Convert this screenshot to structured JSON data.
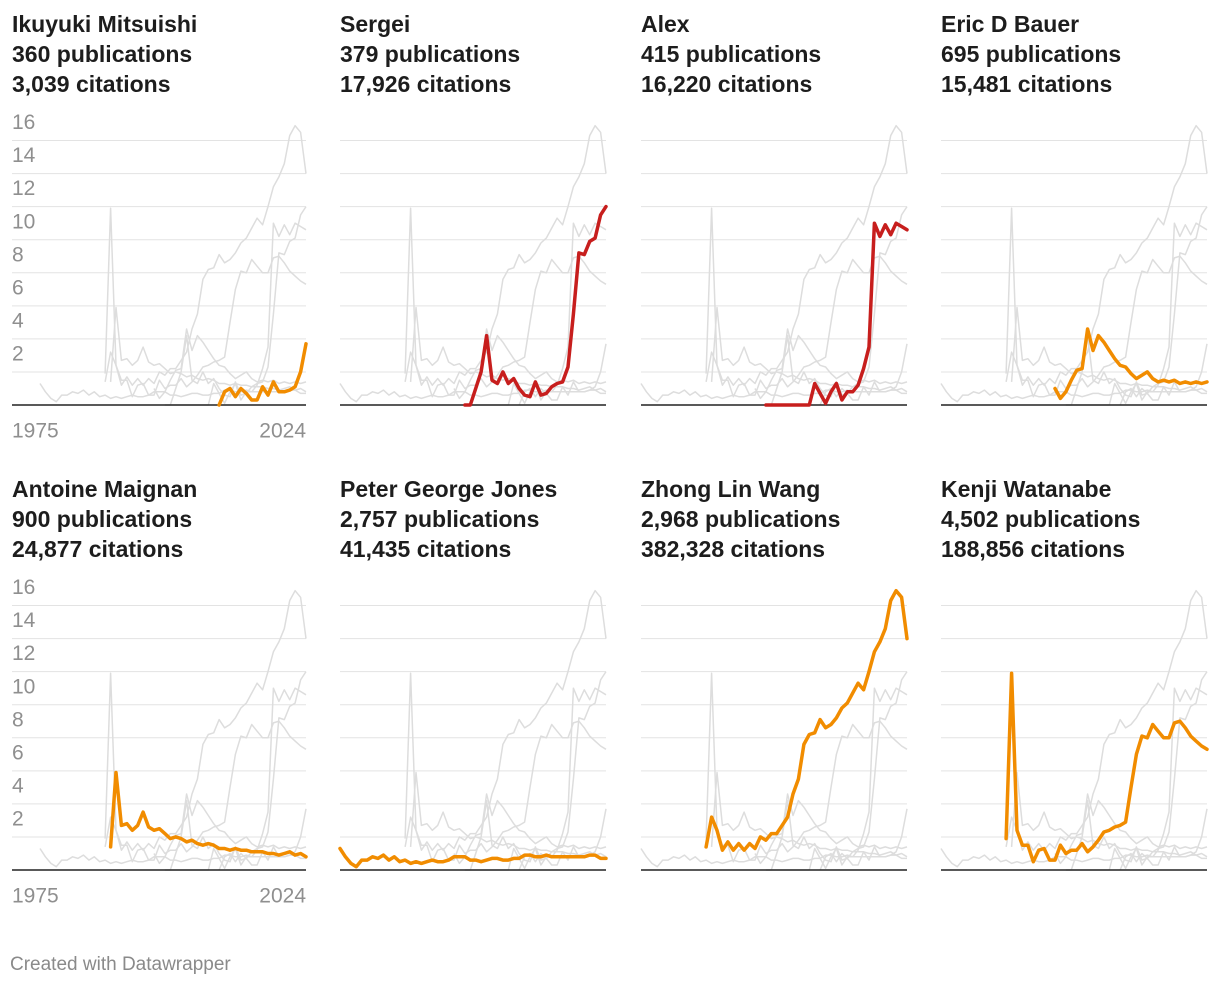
{
  "chart_data": {
    "type": "line",
    "x": [
      1975,
      1976,
      1977,
      1978,
      1979,
      1980,
      1981,
      1982,
      1983,
      1984,
      1985,
      1986,
      1987,
      1988,
      1989,
      1990,
      1991,
      1992,
      1993,
      1994,
      1995,
      1996,
      1997,
      1998,
      1999,
      2000,
      2001,
      2002,
      2003,
      2004,
      2005,
      2006,
      2007,
      2008,
      2009,
      2010,
      2011,
      2012,
      2013,
      2014,
      2015,
      2016,
      2017,
      2018,
      2019,
      2020,
      2021,
      2022,
      2023,
      2024
    ],
    "xlim": [
      1975,
      2024
    ],
    "xticks": [
      1975,
      2024
    ],
    "ylim": [
      0,
      17
    ],
    "yticks": [
      2,
      4,
      6,
      8,
      10,
      12,
      14,
      16
    ],
    "grid": true,
    "background_color": "#dddddd",
    "series": [
      {
        "name": "Ikuyuki Mitsuishi",
        "publications": "360 publications",
        "citations": "3,039 citations",
        "color": "#f18c00",
        "values": [
          null,
          null,
          null,
          null,
          null,
          null,
          null,
          null,
          null,
          null,
          null,
          null,
          null,
          null,
          null,
          null,
          null,
          null,
          null,
          null,
          null,
          null,
          null,
          null,
          null,
          null,
          null,
          null,
          null,
          null,
          null,
          null,
          null,
          0,
          0.8,
          1.0,
          0.5,
          1.0,
          0.7,
          0.3,
          0.3,
          1.1,
          0.6,
          1.4,
          0.8,
          0.8,
          0.9,
          1.1,
          2.0,
          3.7
        ]
      },
      {
        "name": "Sergei",
        "publications": "379 publications",
        "citations": "17,926 citations",
        "color": "#c71e1d",
        "values": [
          null,
          null,
          null,
          null,
          null,
          null,
          null,
          null,
          null,
          null,
          null,
          null,
          null,
          null,
          null,
          null,
          null,
          null,
          null,
          null,
          null,
          null,
          null,
          0,
          0,
          1.0,
          2.0,
          4.2,
          1.5,
          1.3,
          2.0,
          1.3,
          1.6,
          1.0,
          0.6,
          0.5,
          1.4,
          0.6,
          0.7,
          1.1,
          1.3,
          1.4,
          2.3,
          5.5,
          9.2,
          9.1,
          9.9,
          10.1,
          11.5,
          12.0
        ]
      },
      {
        "name": "Alex",
        "publications": "415 publications",
        "citations": "16,220 citations",
        "color": "#c71e1d",
        "values": [
          null,
          null,
          null,
          null,
          null,
          null,
          null,
          null,
          null,
          null,
          null,
          null,
          null,
          null,
          null,
          null,
          null,
          null,
          null,
          null,
          null,
          null,
          null,
          0,
          0,
          0,
          0,
          0,
          0,
          0,
          0,
          0,
          1.3,
          0.7,
          0.1,
          0.8,
          1.3,
          0.3,
          0.8,
          0.8,
          1.2,
          2.2,
          3.5,
          11,
          10.2,
          10.9,
          10.3,
          11,
          10.8,
          10.6
        ]
      },
      {
        "name": "Eric D Bauer",
        "publications": "695 publications",
        "citations": "15,481 citations",
        "color": "#f18c00",
        "values": [
          null,
          null,
          null,
          null,
          null,
          null,
          null,
          null,
          null,
          null,
          null,
          null,
          null,
          null,
          null,
          null,
          null,
          null,
          null,
          null,
          null,
          1.0,
          0.4,
          0.8,
          1.5,
          2.1,
          2.2,
          4.6,
          3.3,
          4.2,
          3.8,
          3.3,
          2.8,
          2.4,
          2.3,
          1.9,
          1.6,
          1.8,
          2.0,
          1.6,
          1.4,
          1.5,
          1.4,
          1.5,
          1.3,
          1.4,
          1.3,
          1.4,
          1.3,
          1.4
        ]
      },
      {
        "name": "Antoine Maignan",
        "publications": "900 publications",
        "citations": "24,877 citations",
        "color": "#f18c00",
        "values": [
          null,
          null,
          null,
          null,
          null,
          null,
          null,
          null,
          null,
          null,
          null,
          null,
          null,
          1.4,
          5.9,
          2.7,
          2.8,
          2.4,
          2.7,
          3.5,
          2.6,
          2.4,
          2.5,
          2.2,
          1.9,
          2.0,
          1.9,
          1.7,
          1.8,
          1.6,
          1.5,
          1.6,
          1.5,
          1.3,
          1.3,
          1.2,
          1.3,
          1.2,
          1.2,
          1.1,
          1.1,
          1.1,
          1.0,
          1.0,
          0.9,
          1.0,
          1.1,
          0.9,
          1.0,
          0.8
        ]
      },
      {
        "name": "Peter George Jones",
        "publications": "2,757 publications",
        "citations": "41,435 citations",
        "color": "#f18c00",
        "values": [
          1.3,
          0.8,
          0.4,
          0.2,
          0.6,
          0.6,
          0.8,
          0.7,
          0.9,
          0.6,
          0.8,
          0.5,
          0.6,
          0.4,
          0.5,
          0.4,
          0.5,
          0.6,
          0.5,
          0.5,
          0.6,
          0.8,
          0.8,
          0.8,
          0.6,
          0.6,
          0.5,
          0.6,
          0.7,
          0.7,
          0.6,
          0.6,
          0.7,
          0.7,
          0.9,
          0.9,
          0.8,
          0.8,
          0.9,
          0.8,
          0.8,
          0.8,
          0.8,
          0.8,
          0.8,
          0.8,
          0.9,
          0.9,
          0.7,
          0.7
        ]
      },
      {
        "name": "Zhong Lin Wang",
        "publications": "2,968 publications",
        "citations": "382,328 citations",
        "color": "#f18c00",
        "values": [
          null,
          null,
          null,
          null,
          null,
          null,
          null,
          null,
          null,
          null,
          null,
          null,
          1.4,
          3.2,
          2.4,
          1.2,
          1.7,
          1.2,
          1.6,
          1.2,
          1.6,
          1.3,
          2.0,
          1.8,
          2.2,
          2.2,
          2.7,
          3.2,
          4.6,
          5.5,
          7.6,
          8.2,
          8.3,
          9.1,
          8.6,
          8.8,
          9.2,
          9.8,
          10.1,
          10.7,
          11.3,
          10.9,
          12.0,
          13.2,
          13.8,
          14.6,
          16.3,
          16.9,
          16.5,
          14.0
        ]
      },
      {
        "name": "Kenji Watanabe",
        "publications": "4,502 publications",
        "citations": "188,856 citations",
        "color": "#f18c00",
        "values": [
          null,
          null,
          null,
          null,
          null,
          null,
          null,
          null,
          null,
          null,
          null,
          null,
          1.9,
          11.9,
          2.4,
          1.5,
          1.5,
          0.5,
          1.2,
          1.3,
          0.6,
          0.6,
          1.5,
          1.0,
          1.2,
          1.2,
          1.6,
          1.1,
          1.4,
          1.8,
          2.3,
          2.4,
          2.6,
          2.7,
          2.9,
          5.0,
          7.0,
          8.1,
          8.0,
          8.8,
          8.4,
          8.0,
          8.0,
          8.9,
          9.0,
          8.6,
          8.1,
          7.8,
          7.5,
          7.3
        ]
      }
    ]
  },
  "credit": "Created with Datawrapper"
}
